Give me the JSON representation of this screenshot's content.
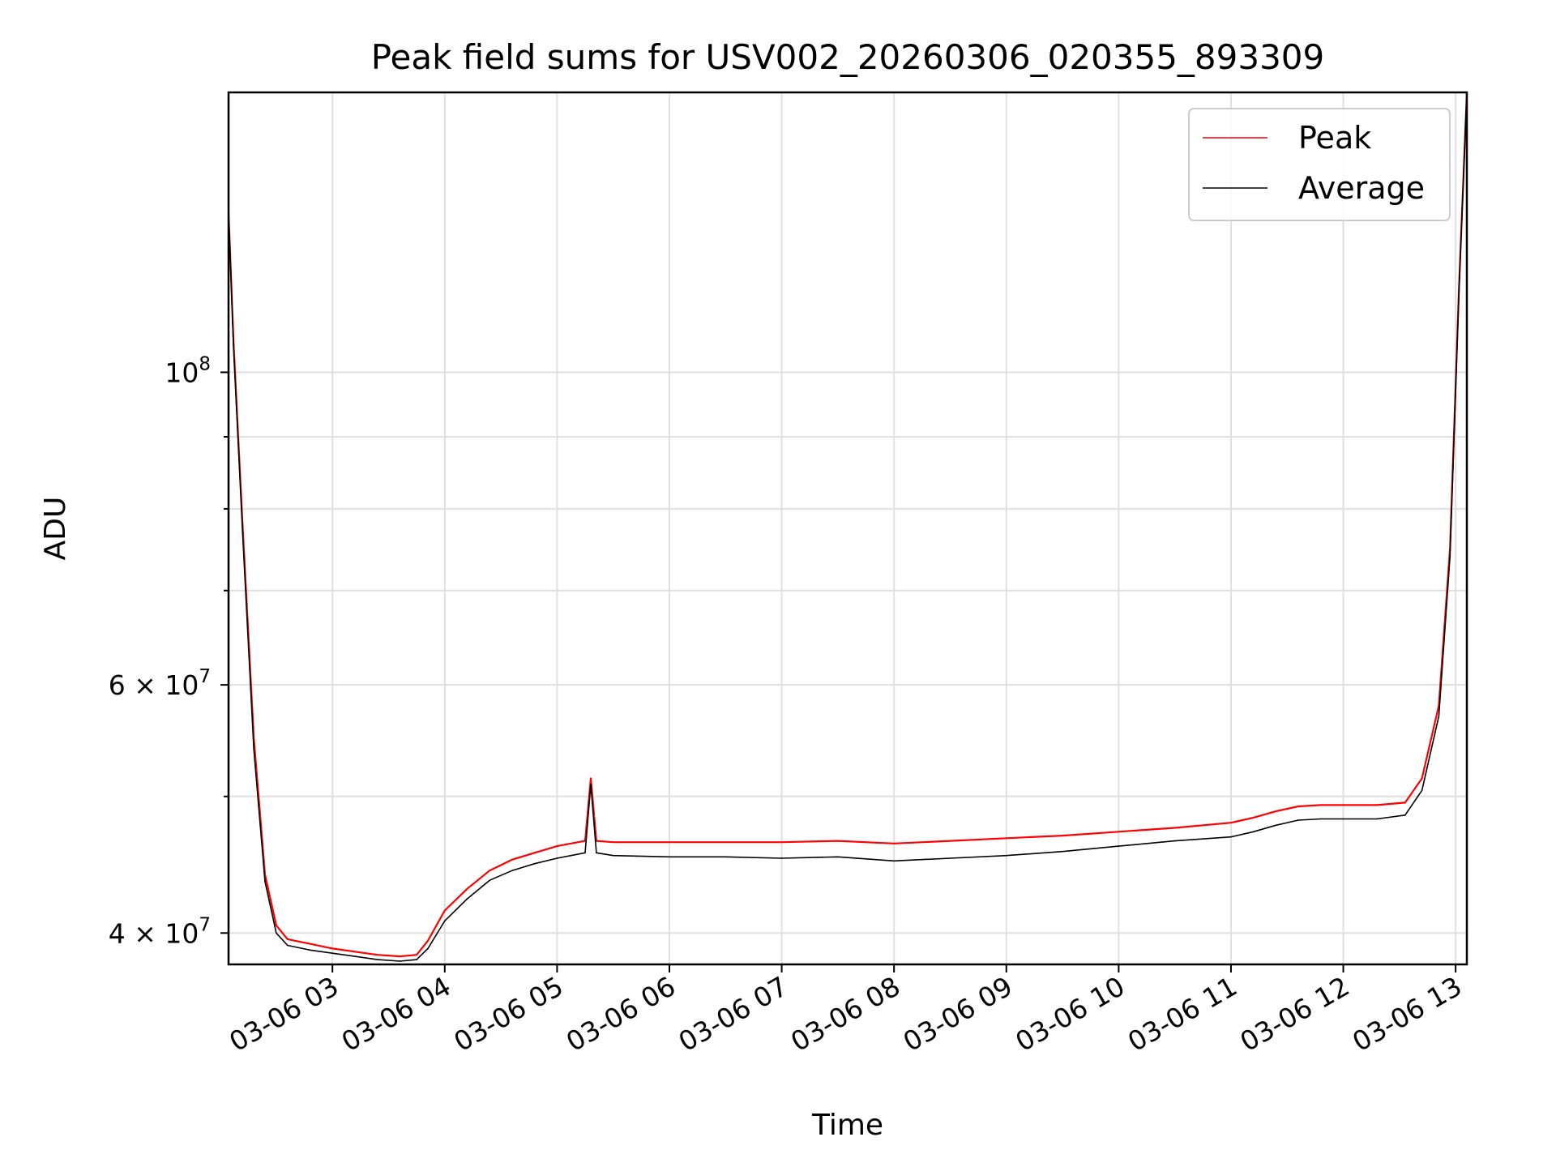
{
  "chart_data": {
    "type": "line",
    "title": "Peak field sums for USV002_20260306_020355_893309",
    "xlabel": "Time",
    "ylabel": "ADU",
    "yscale": "log",
    "ylim": [
      38000000,
      158000000
    ],
    "xlim": [
      2.075,
      13.1
    ],
    "grid": true,
    "legend_position": "top-right",
    "x_ticks": [
      {
        "value": 3,
        "label": "03-06 03"
      },
      {
        "value": 4,
        "label": "03-06 04"
      },
      {
        "value": 5,
        "label": "03-06 05"
      },
      {
        "value": 6,
        "label": "03-06 06"
      },
      {
        "value": 7,
        "label": "03-06 07"
      },
      {
        "value": 8,
        "label": "03-06 08"
      },
      {
        "value": 9,
        "label": "03-06 09"
      },
      {
        "value": 10,
        "label": "03-06 10"
      },
      {
        "value": 11,
        "label": "03-06 11"
      },
      {
        "value": 12,
        "label": "03-06 12"
      },
      {
        "value": 13,
        "label": "03-06 13"
      }
    ],
    "y_major_ticks": [
      {
        "value": 40000000,
        "base": "4 × 10",
        "exp": "7"
      },
      {
        "value": 60000000,
        "base": "6 × 10",
        "exp": "7"
      },
      {
        "value": 100000000,
        "base": "10",
        "exp": "8"
      }
    ],
    "y_minor_ticks": [
      50000000,
      70000000,
      80000000,
      90000000
    ],
    "series": [
      {
        "name": "Peak",
        "color": "#ff0000",
        "x": [
          2.075,
          2.12,
          2.2,
          2.3,
          2.4,
          2.5,
          2.6,
          2.8,
          3.0,
          3.2,
          3.4,
          3.6,
          3.75,
          3.85,
          4.0,
          4.2,
          4.4,
          4.6,
          4.8,
          5.0,
          5.25,
          5.3,
          5.35,
          5.5,
          6.0,
          6.5,
          7.0,
          7.5,
          8.0,
          8.5,
          9.0,
          9.5,
          10.0,
          10.5,
          11.0,
          11.2,
          11.4,
          11.6,
          11.8,
          12.0,
          12.3,
          12.55,
          12.7,
          12.85,
          12.95,
          13.03,
          13.1
        ],
        "values": [
          130000000,
          105000000,
          78000000,
          55000000,
          44000000,
          40500000,
          39600000,
          39300000,
          39000000,
          38800000,
          38600000,
          38500000,
          38600000,
          39500000,
          41500000,
          43000000,
          44300000,
          45100000,
          45600000,
          46100000,
          46500000,
          51500000,
          46500000,
          46400000,
          46400000,
          46400000,
          46400000,
          46500000,
          46300000,
          46500000,
          46700000,
          46900000,
          47200000,
          47500000,
          47900000,
          48300000,
          48800000,
          49200000,
          49300000,
          49300000,
          49300000,
          49500000,
          51500000,
          58000000,
          75000000,
          115000000,
          158000000
        ]
      },
      {
        "name": "Average",
        "color": "#000000",
        "x": [
          2.075,
          2.12,
          2.2,
          2.3,
          2.4,
          2.5,
          2.6,
          2.8,
          3.0,
          3.2,
          3.4,
          3.6,
          3.75,
          3.85,
          4.0,
          4.2,
          4.4,
          4.6,
          4.8,
          5.0,
          5.25,
          5.3,
          5.35,
          5.5,
          6.0,
          6.5,
          7.0,
          7.5,
          8.0,
          8.5,
          9.0,
          9.5,
          10.0,
          10.5,
          11.0,
          11.2,
          11.4,
          11.6,
          11.8,
          12.0,
          12.3,
          12.55,
          12.7,
          12.85,
          12.95,
          13.03,
          13.1
        ],
        "values": [
          130000000,
          104000000,
          77000000,
          54000000,
          43500000,
          40000000,
          39200000,
          38900000,
          38700000,
          38500000,
          38300000,
          38200000,
          38300000,
          39000000,
          40800000,
          42300000,
          43600000,
          44300000,
          44800000,
          45200000,
          45600000,
          51000000,
          45600000,
          45400000,
          45300000,
          45300000,
          45200000,
          45300000,
          45000000,
          45200000,
          45400000,
          45700000,
          46100000,
          46500000,
          46800000,
          47200000,
          47700000,
          48100000,
          48200000,
          48200000,
          48200000,
          48500000,
          50500000,
          57000000,
          74000000,
          114000000,
          158000000
        ]
      }
    ]
  }
}
